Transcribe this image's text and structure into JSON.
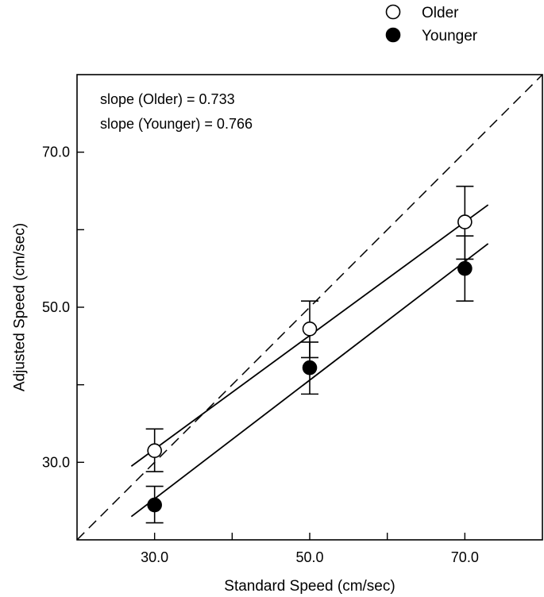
{
  "chart_data": {
    "type": "scatter",
    "title": "",
    "xlabel": "Standard Speed (cm/sec)",
    "ylabel": "Adjusted Speed (cm/sec)",
    "xlim": [
      20,
      80
    ],
    "ylim": [
      20,
      80
    ],
    "x_ticks": [
      30,
      40,
      50,
      60,
      70
    ],
    "x_tick_labels": [
      "30.0",
      "",
      "50.0",
      "",
      "70.0"
    ],
    "y_ticks": [
      30,
      40,
      50,
      60,
      70
    ],
    "y_tick_labels": [
      "30.0",
      "",
      "50.0",
      "",
      "70.0"
    ],
    "grid": false,
    "legend": {
      "placement": "top-right-outside"
    },
    "annotations": [
      "slope (Older) = 0.733",
      "slope (Younger) = 0.766"
    ],
    "identity_line": {
      "style": "dashed",
      "from": [
        20,
        20
      ],
      "to": [
        80,
        80
      ]
    },
    "series": [
      {
        "name": "Older",
        "marker": "open-circle",
        "x": [
          30,
          50,
          70
        ],
        "y": [
          31.5,
          47.2,
          61.0
        ],
        "err_low": [
          28.8,
          43.5,
          56.2
        ],
        "err_high": [
          34.3,
          50.8,
          65.6
        ],
        "fit": {
          "slope": 0.733,
          "x_range": [
            27,
            73
          ],
          "from": [
            27,
            29.5
          ],
          "to": [
            73,
            63.2
          ]
        }
      },
      {
        "name": "Younger",
        "marker": "filled-circle",
        "x": [
          30,
          50,
          70
        ],
        "y": [
          24.5,
          42.2,
          55.0
        ],
        "err_low": [
          22.2,
          38.8,
          50.8
        ],
        "err_high": [
          26.9,
          45.5,
          59.2
        ],
        "fit": {
          "slope": 0.766,
          "x_range": [
            27,
            73
          ],
          "from": [
            27,
            23.0
          ],
          "to": [
            73,
            58.2
          ]
        }
      }
    ]
  }
}
